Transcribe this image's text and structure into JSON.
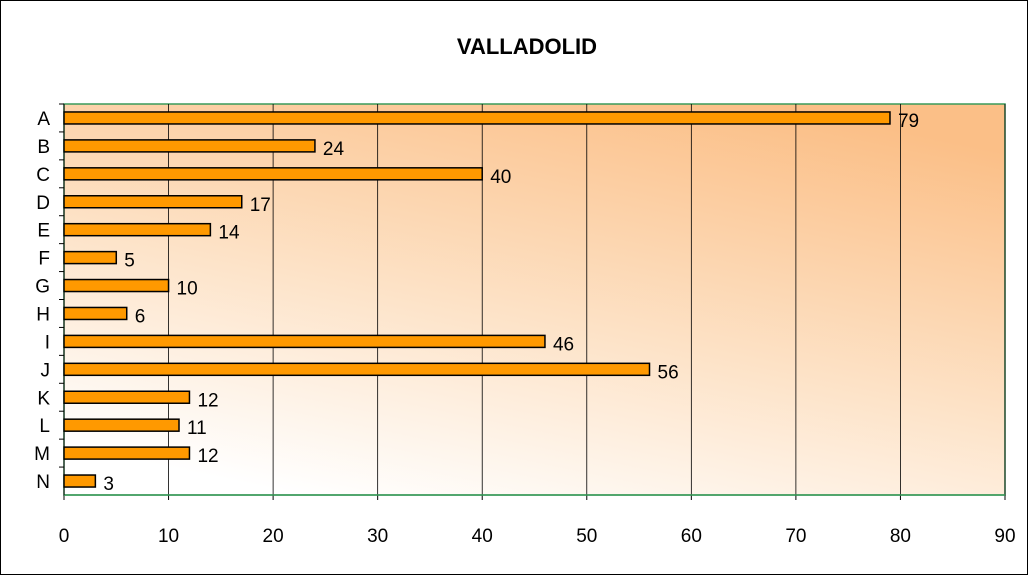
{
  "chart_data": {
    "type": "bar",
    "orientation": "horizontal",
    "title": "VALLADOLID",
    "categories": [
      "A",
      "B",
      "C",
      "D",
      "E",
      "F",
      "G",
      "H",
      "I",
      "J",
      "K",
      "L",
      "M",
      "N"
    ],
    "values": [
      79,
      24,
      40,
      17,
      14,
      5,
      10,
      6,
      46,
      56,
      12,
      11,
      12,
      3
    ],
    "color": "#ff9900",
    "xlim": [
      0,
      90
    ],
    "xticks": [
      0,
      10,
      20,
      30,
      40,
      50,
      60,
      70,
      80,
      90
    ],
    "grid": true
  }
}
